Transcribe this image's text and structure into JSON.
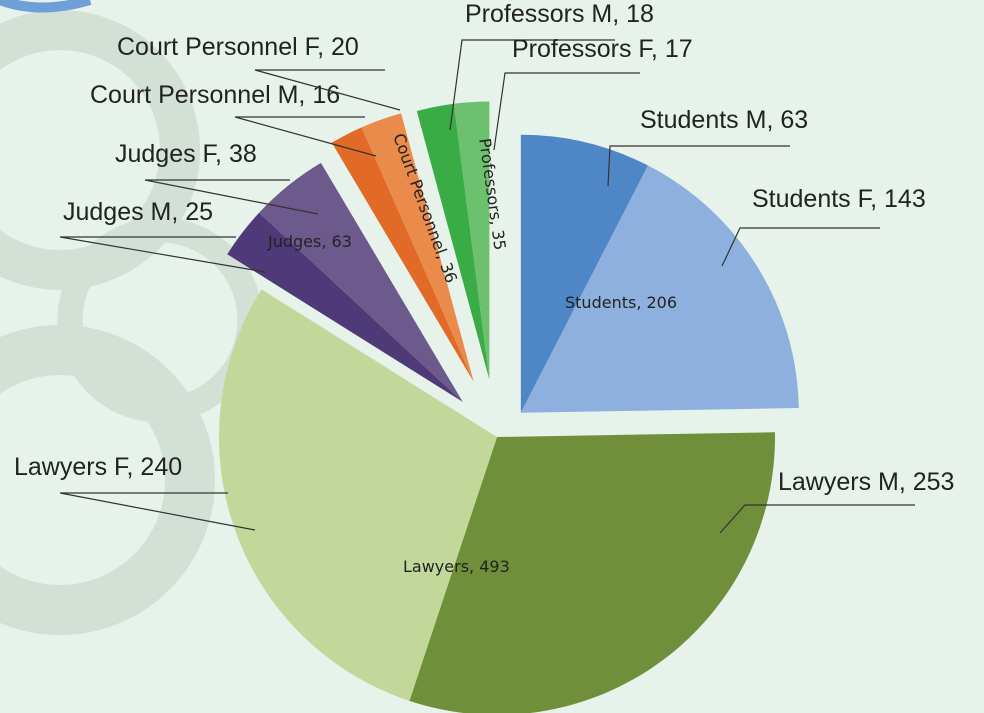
{
  "chart_data": {
    "type": "pie",
    "groups": [
      {
        "label": "Students, 206",
        "value": 206,
        "segments": [
          {
            "label": "Students M, 63",
            "value": 63,
            "color": "#4f86c6"
          },
          {
            "label": "Students F, 143",
            "value": 143,
            "color": "#8db0df"
          }
        ]
      },
      {
        "label": "Lawyers, 493",
        "value": 493,
        "segments": [
          {
            "label": "Lawyers M, 253",
            "value": 253,
            "color": "#6f8f3a"
          },
          {
            "label": "Lawyers F, 240",
            "value": 240,
            "color": "#c2d89a"
          }
        ]
      },
      {
        "label": "Judges, 63",
        "value": 63,
        "segments": [
          {
            "label": "Judges M, 25",
            "value": 25,
            "color": "#4e3a78"
          },
          {
            "label": "Judges F, 38",
            "value": 38,
            "color": "#6d5a8c"
          }
        ]
      },
      {
        "label": "Court Personnel, 36",
        "value": 36,
        "segments": [
          {
            "label": "Court Personnel M, 16",
            "value": 16,
            "color": "#e06a26"
          },
          {
            "label": "Court Personnel F, 20",
            "value": 20,
            "color": "#ea8a4b"
          }
        ]
      },
      {
        "label": "Professors, 35",
        "value": 35,
        "segments": [
          {
            "label": "Professors M, 18",
            "value": 18,
            "color": "#3aac46"
          },
          {
            "label": "Professors F, 17",
            "value": 17,
            "color": "#6cc06e"
          }
        ]
      }
    ]
  }
}
